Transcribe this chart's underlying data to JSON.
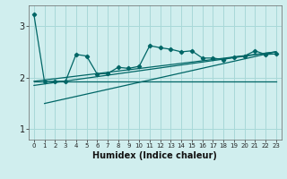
{
  "xlabel": "Humidex (Indice chaleur)",
  "background_color": "#d0eeee",
  "grid_color": "#a8d8d8",
  "line_color": "#006666",
  "xlim": [
    -0.5,
    23.5
  ],
  "ylim": [
    0.8,
    3.4
  ],
  "yticks": [
    1,
    2,
    3
  ],
  "xticks": [
    0,
    1,
    2,
    3,
    4,
    5,
    6,
    7,
    8,
    9,
    10,
    11,
    12,
    13,
    14,
    15,
    16,
    17,
    18,
    19,
    20,
    21,
    22,
    23
  ],
  "series1_x": [
    0,
    1,
    2,
    3,
    4,
    5,
    6,
    7,
    8,
    9,
    10,
    11,
    12,
    13,
    14,
    15,
    16,
    17,
    18,
    19,
    20,
    21,
    22,
    23
  ],
  "series1_y": [
    3.22,
    1.92,
    1.93,
    1.93,
    2.45,
    2.42,
    2.07,
    2.08,
    2.2,
    2.18,
    2.22,
    2.62,
    2.58,
    2.55,
    2.5,
    2.52,
    2.38,
    2.38,
    2.35,
    2.4,
    2.42,
    2.52,
    2.45,
    2.46
  ],
  "series2_x": [
    0,
    23
  ],
  "series2_y": [
    1.93,
    1.93
  ],
  "series3_x": [
    1,
    23
  ],
  "series3_y": [
    1.5,
    2.5
  ],
  "series4_x": [
    0,
    23
  ],
  "series4_y": [
    1.93,
    2.5
  ],
  "series5_x": [
    0,
    23
  ],
  "series5_y": [
    1.85,
    2.5
  ]
}
